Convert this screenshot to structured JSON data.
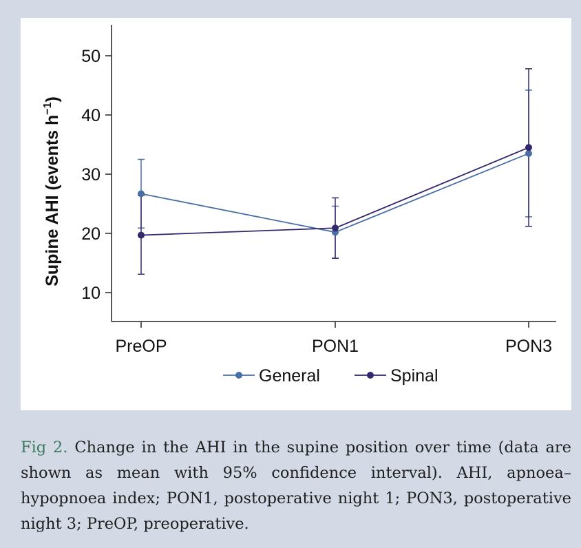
{
  "colors": {
    "page_background": "#d3dae6",
    "panel_background": "#ffffff",
    "general": "#4a6fa5",
    "spinal": "#33286b",
    "caption_label": "#3a7a5e"
  },
  "chart_data": {
    "type": "line",
    "title": "",
    "xlabel": "",
    "ylabel_main": "Supine AHI (events h",
    "ylabel_sup": "−1",
    "ylabel_close": ")",
    "categories": [
      "PreOP",
      "PON1",
      "PON3"
    ],
    "ylim": [
      5,
      55
    ],
    "yticks": [
      10,
      20,
      30,
      40,
      50
    ],
    "grid": false,
    "legend_position": "bottom",
    "series": [
      {
        "name": "General",
        "values": [
          26.7,
          20.2,
          33.5
        ],
        "ci_lower": [
          20.9,
          15.8,
          22.8
        ],
        "ci_upper": [
          32.5,
          24.6,
          44.2
        ]
      },
      {
        "name": "Spinal",
        "values": [
          19.7,
          20.9,
          34.5
        ],
        "ci_lower": [
          13.1,
          15.8,
          21.2
        ],
        "ci_upper": [
          26.4,
          26.0,
          47.8
        ]
      }
    ]
  },
  "caption": {
    "label": "Fig 2.",
    "text": " Change in the AHI in the supine position over time (data are shown as mean with 95% confidence interval). AHI, apnoea–hypopnoea index; PON1, postoperative night 1; PON3, postoperative night 3; PreOP, preoperative."
  }
}
